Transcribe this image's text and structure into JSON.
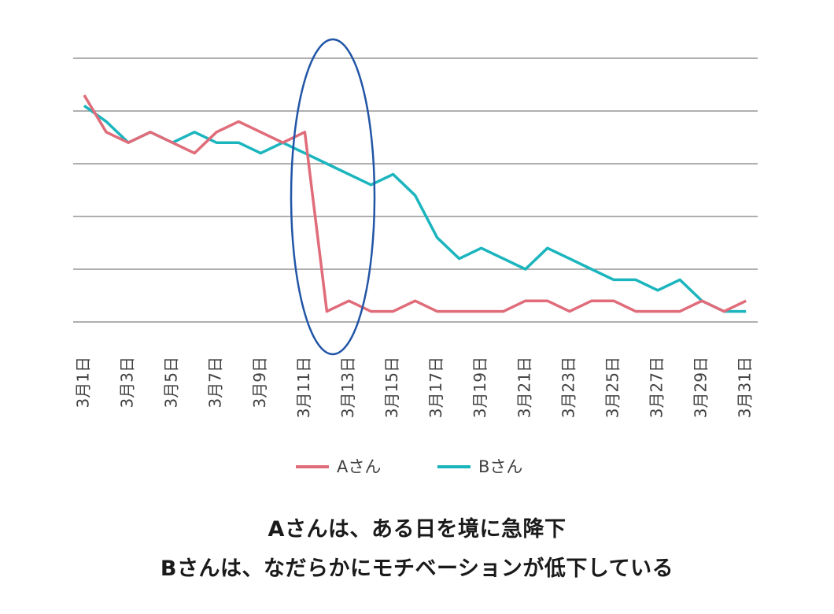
{
  "chart_data": {
    "type": "line",
    "x": [
      "3月1日",
      "3月2日",
      "3月3日",
      "3月4日",
      "3月5日",
      "3月6日",
      "3月7日",
      "3月8日",
      "3月9日",
      "3月10日",
      "3月11日",
      "3月12日",
      "3月13日",
      "3月14日",
      "3月15日",
      "3月16日",
      "3月17日",
      "3月18日",
      "3月19日",
      "3月20日",
      "3月21日",
      "3月22日",
      "3月23日",
      "3月24日",
      "3月25日",
      "3月26日",
      "3月27日",
      "3月28日",
      "3月29日",
      "3月30日",
      "3月31日"
    ],
    "tick_labels": [
      "3月1日",
      "3月3日",
      "3月5日",
      "3月7日",
      "3月9日",
      "3月11日",
      "3月13日",
      "3月15日",
      "3月17日",
      "3月19日",
      "3月21日",
      "3月23日",
      "3月25日",
      "3月27日",
      "3月29日",
      "3月31日"
    ],
    "series": [
      {
        "name": "Aさん",
        "color": "#E06C7A",
        "values": [
          4.3,
          3.6,
          3.4,
          3.6,
          3.4,
          3.2,
          3.6,
          3.8,
          3.6,
          3.4,
          3.6,
          0.2,
          0.4,
          0.2,
          0.2,
          0.4,
          0.2,
          0.2,
          0.2,
          0.2,
          0.4,
          0.4,
          0.2,
          0.4,
          0.4,
          0.2,
          0.2,
          0.2,
          0.4,
          0.2,
          0.4
        ]
      },
      {
        "name": "Bさん",
        "color": "#1BB5BE",
        "values": [
          4.1,
          3.8,
          3.4,
          3.6,
          3.4,
          3.6,
          3.4,
          3.4,
          3.2,
          3.4,
          3.2,
          3.0,
          2.8,
          2.6,
          2.8,
          2.4,
          1.6,
          1.2,
          1.4,
          1.2,
          1.0,
          1.4,
          1.2,
          1.0,
          0.8,
          0.8,
          0.6,
          0.8,
          0.4,
          0.2,
          0.2
        ]
      }
    ],
    "ylim": [
      0,
      5
    ],
    "grid": true,
    "legend": "bottom",
    "annotation": "ellipse highlighting 3月11日–3月13日",
    "annotation_color": "#2155A6",
    "gridline_color": "#7F7F7F"
  },
  "captions": {
    "line1": "Aさんは、ある日を境に急降下",
    "line2": "Bさんは、なだらかにモチベーションが低下している"
  }
}
